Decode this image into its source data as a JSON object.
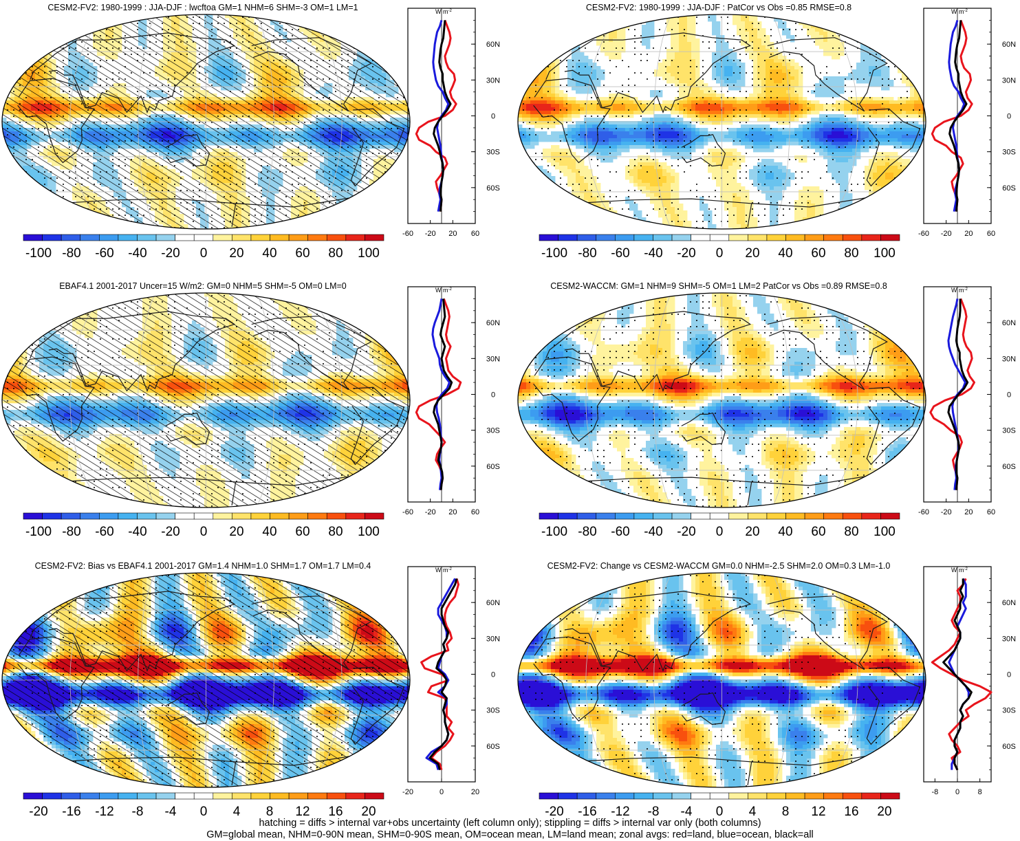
{
  "figure": {
    "footer": [
      "hatching = diffs > internal var+obs uncertainty (left column only); stippling = diffs > internal var only (both columns)",
      "GM=global mean, NHM=0-90N mean, SHM=0-90S mean, OM=ocean mean, LM=land mean; zonal avgs: red=land, blue=ocean, black=all"
    ],
    "zonal_unit": "W m",
    "zonal_unit_exp": "-2",
    "lat_labels": [
      "60N",
      "30N",
      "0",
      "30S",
      "60S"
    ]
  },
  "colors": {
    "red": "#e8141c",
    "blue": "#1a1adc",
    "black": "#000000",
    "palette": [
      "#2a0fd6",
      "#1f33e6",
      "#2f5ee8",
      "#3a80ec",
      "#3c9cf0",
      "#46b2f0",
      "#69c3ee",
      "#95d2ee",
      "#ffffff",
      "#ffffff",
      "#fff39e",
      "#ffe36a",
      "#ffd23a",
      "#ffbb22",
      "#ff9d17",
      "#ff7a10",
      "#f8500e",
      "#e8251a",
      "#cc0a17"
    ],
    "land": "#1c1c1c",
    "grid": "#bfbfbf"
  },
  "chart_data": [
    {
      "type": "heatmap",
      "title": "CESM2-FV2: 1980-1999 : JJA-DJF : lwcftoa GM=1 NHM=6 SHM=-3 OM=1 LM=1",
      "colorbar_labels": [
        "-100",
        "-80",
        "-60",
        "-40",
        "-20",
        "0",
        "20",
        "40",
        "60",
        "80",
        "100"
      ],
      "zonal": {
        "xticks": [
          "-60",
          "-20",
          "20",
          "60"
        ],
        "xlim": [
          -60,
          60
        ],
        "ylim": [
          -90,
          90
        ],
        "lat": [
          -80,
          -75,
          -70,
          -65,
          -60,
          -55,
          -50,
          -45,
          -40,
          -35,
          -30,
          -25,
          -20,
          -15,
          -10,
          -5,
          0,
          5,
          10,
          15,
          20,
          25,
          30,
          35,
          40,
          45,
          50,
          55,
          60,
          65,
          70,
          75,
          80
        ],
        "all": [
          -2,
          -1,
          0,
          -2,
          -1,
          0,
          2,
          3,
          2,
          -1,
          -3,
          -6,
          -10,
          -14,
          -12,
          -6,
          2,
          10,
          16,
          10,
          6,
          4,
          2,
          2,
          -2,
          -4,
          -3,
          -2,
          0,
          3,
          4,
          5,
          6
        ],
        "ocean": [
          -6,
          -4,
          -2,
          -4,
          -3,
          0,
          2,
          3,
          2,
          0,
          -1,
          -2,
          -4,
          -6,
          -8,
          -6,
          0,
          8,
          12,
          6,
          2,
          -6,
          -10,
          -12,
          -14,
          -15,
          -14,
          -13,
          -12,
          -10,
          -8,
          -3,
          0
        ],
        "land": [
          -2,
          -1,
          0,
          -4,
          -8,
          -10,
          -2,
          4,
          10,
          6,
          -10,
          -20,
          -40,
          -45,
          -40,
          -24,
          6,
          20,
          26,
          18,
          15,
          20,
          24,
          22,
          12,
          8,
          6,
          10,
          14,
          16,
          14,
          10,
          6
        ]
      },
      "map": {
        "hatch": true,
        "stipple_density": 0.5,
        "gain": 1.0,
        "seed": 1
      }
    },
    {
      "type": "heatmap",
      "title": "CESM2-FV2: 1980-1999 : JJA-DJF : PatCor vs Obs =0.85 RMSE=0.8",
      "colorbar_labels": [
        "-100",
        "-80",
        "-60",
        "-40",
        "-20",
        "0",
        "20",
        "40",
        "60",
        "80",
        "100"
      ],
      "zonal": {
        "xticks": [
          "-60",
          "-20",
          "20",
          "60"
        ],
        "xlim": [
          -60,
          60
        ],
        "ylim": [
          -90,
          90
        ],
        "lat": [
          -80,
          -75,
          -70,
          -65,
          -60,
          -55,
          -50,
          -45,
          -40,
          -35,
          -30,
          -25,
          -20,
          -15,
          -10,
          -5,
          0,
          5,
          10,
          15,
          20,
          25,
          30,
          35,
          40,
          45,
          50,
          55,
          60,
          65,
          70,
          75,
          80
        ],
        "all": [
          -2,
          -1,
          0,
          -2,
          -1,
          0,
          2,
          3,
          2,
          -1,
          -3,
          -6,
          -10,
          -14,
          -12,
          -6,
          2,
          10,
          16,
          10,
          6,
          4,
          2,
          2,
          -2,
          -4,
          -3,
          -2,
          0,
          3,
          4,
          5,
          6
        ],
        "ocean": [
          -6,
          -4,
          -2,
          -4,
          -3,
          0,
          2,
          3,
          2,
          0,
          -1,
          -2,
          -4,
          -6,
          -8,
          -6,
          0,
          8,
          12,
          6,
          2,
          -6,
          -10,
          -12,
          -14,
          -15,
          -14,
          -13,
          -12,
          -10,
          -8,
          -3,
          0
        ],
        "land": [
          -2,
          -1,
          0,
          -4,
          -8,
          -10,
          -2,
          4,
          10,
          6,
          -10,
          -20,
          -40,
          -45,
          -40,
          -24,
          6,
          20,
          26,
          18,
          15,
          20,
          24,
          22,
          12,
          8,
          6,
          10,
          14,
          16,
          14,
          10,
          6
        ]
      },
      "map": {
        "hatch": false,
        "stipple_density": 0.4,
        "gain": 1.0,
        "seed": 2
      }
    },
    {
      "type": "heatmap",
      "title": "EBAF4.1 2001-2017 Uncer=15 W/m2: GM=0 NHM=5 SHM=-5 OM=0 LM=0",
      "colorbar_labels": [
        "-100",
        "-80",
        "-60",
        "-40",
        "-20",
        "0",
        "20",
        "40",
        "60",
        "80",
        "100"
      ],
      "zonal": {
        "xticks": [
          "-60",
          "-20",
          "20",
          "60"
        ],
        "xlim": [
          -60,
          60
        ],
        "ylim": [
          -90,
          90
        ],
        "lat": [
          -80,
          -75,
          -70,
          -65,
          -60,
          -55,
          -50,
          -45,
          -40,
          -35,
          -30,
          -25,
          -20,
          -15,
          -10,
          -5,
          0,
          5,
          10,
          15,
          20,
          25,
          30,
          35,
          40,
          45,
          50,
          55,
          60,
          65,
          70,
          75,
          80
        ],
        "all": [
          -1,
          0,
          2,
          1,
          -2,
          -6,
          -4,
          -1,
          0,
          -2,
          -4,
          -6,
          -10,
          -14,
          -12,
          -6,
          4,
          14,
          18,
          10,
          4,
          2,
          0,
          3,
          6,
          2,
          -2,
          0,
          3,
          6,
          5,
          4,
          3
        ],
        "ocean": [
          -3,
          -2,
          0,
          -1,
          -2,
          -4,
          -3,
          -1,
          0,
          -1,
          -2,
          -3,
          -5,
          -8,
          -9,
          -7,
          0,
          10,
          14,
          6,
          0,
          -3,
          -4,
          -8,
          -12,
          -14,
          -16,
          -15,
          -12,
          -8,
          -4,
          -2,
          0
        ],
        "land": [
          -2,
          0,
          2,
          0,
          -4,
          -10,
          -8,
          -2,
          6,
          -2,
          -12,
          -22,
          -40,
          -45,
          -40,
          -20,
          10,
          30,
          34,
          20,
          12,
          10,
          8,
          12,
          16,
          10,
          8,
          10,
          12,
          14,
          12,
          8,
          4
        ]
      },
      "map": {
        "hatch": true,
        "stipple_density": 0.35,
        "gain": 0.9,
        "seed": 3
      }
    },
    {
      "type": "heatmap",
      "title": "CESM2-WACCM: GM=1 NHM=9 SHM=-5 OM=1 LM=2 PatCor vs Obs =0.89 RMSE=0.8",
      "colorbar_labels": [
        "-100",
        "-80",
        "-60",
        "-40",
        "-20",
        "0",
        "20",
        "40",
        "60",
        "80",
        "100"
      ],
      "zonal": {
        "xticks": [
          "-60",
          "-20",
          "20",
          "60"
        ],
        "xlim": [
          -60,
          60
        ],
        "ylim": [
          -90,
          90
        ],
        "lat": [
          -80,
          -75,
          -70,
          -65,
          -60,
          -55,
          -50,
          -45,
          -40,
          -35,
          -30,
          -25,
          -20,
          -15,
          -10,
          -5,
          0,
          5,
          10,
          15,
          20,
          25,
          30,
          35,
          40,
          45,
          50,
          55,
          60,
          65,
          70,
          75,
          80
        ],
        "all": [
          -2,
          -1,
          0,
          -2,
          -2,
          -1,
          1,
          3,
          2,
          -1,
          -4,
          -8,
          -12,
          -16,
          -14,
          -6,
          2,
          12,
          18,
          12,
          8,
          6,
          4,
          4,
          0,
          -2,
          -1,
          0,
          2,
          4,
          5,
          5,
          5
        ],
        "ocean": [
          -5,
          -4,
          -2,
          -3,
          -3,
          -1,
          1,
          2,
          2,
          0,
          -2,
          -4,
          -6,
          -8,
          -9,
          -7,
          0,
          10,
          14,
          8,
          2,
          -4,
          -8,
          -12,
          -15,
          -16,
          -14,
          -12,
          -10,
          -8,
          -5,
          -2,
          0
        ],
        "land": [
          -2,
          -1,
          0,
          -3,
          -6,
          -8,
          -2,
          4,
          8,
          4,
          -12,
          -24,
          -42,
          -48,
          -42,
          -22,
          8,
          24,
          30,
          22,
          18,
          22,
          26,
          24,
          16,
          12,
          10,
          12,
          14,
          16,
          14,
          10,
          6
        ]
      },
      "map": {
        "hatch": false,
        "stipple_density": 0.45,
        "gain": 1.1,
        "seed": 4
      }
    },
    {
      "type": "heatmap",
      "title": "CESM2-FV2: Bias vs EBAF4.1 2001-2017 GM=1.4 NHM=1.0 SHM=1.7 OM=1.7 LM=0.4",
      "colorbar_labels": [
        "-20",
        "-16",
        "-12",
        "-8",
        "-4",
        "0",
        "4",
        "8",
        "12",
        "16",
        "20"
      ],
      "zonal": {
        "xticks": [
          "-20",
          "0",
          "20"
        ],
        "xlim": [
          -20,
          20
        ],
        "ylim": [
          -90,
          90
        ],
        "lat": [
          -80,
          -75,
          -70,
          -65,
          -60,
          -55,
          -50,
          -45,
          -40,
          -35,
          -30,
          -25,
          -20,
          -15,
          -10,
          -5,
          0,
          5,
          10,
          15,
          20,
          25,
          30,
          35,
          40,
          45,
          50,
          55,
          60,
          65,
          70,
          75,
          80
        ],
        "all": [
          -1,
          -2,
          -7,
          -4,
          0,
          3,
          4,
          3,
          2,
          2,
          1,
          2,
          3,
          0,
          2,
          3,
          1,
          -3,
          -2,
          0,
          2,
          1,
          3,
          4,
          2,
          1,
          0,
          0,
          2,
          4,
          6,
          8,
          9
        ],
        "ocean": [
          -2,
          -3,
          -9,
          -6,
          0,
          3,
          4,
          3,
          2,
          2,
          1,
          3,
          3,
          -2,
          2,
          4,
          2,
          -2,
          -1,
          0,
          2,
          1,
          3,
          3,
          2,
          0,
          -2,
          -2,
          0,
          2,
          4,
          6,
          8
        ],
        "land": [
          0,
          -1,
          -6,
          -3,
          2,
          5,
          7,
          4,
          6,
          3,
          3,
          3,
          2,
          -8,
          -6,
          4,
          0,
          -10,
          -12,
          -6,
          4,
          3,
          6,
          5,
          3,
          2,
          2,
          3,
          5,
          8,
          9,
          10,
          9
        ]
      },
      "map": {
        "hatch": true,
        "stipple_density": 0.45,
        "gain": 2.2,
        "seed": 5
      }
    },
    {
      "type": "heatmap",
      "title": "CESM2-FV2: Change vs CESM2-WACCM GM=0.0 NHM=-2.5 SHM=2.0 OM=0.3 LM=-1.0",
      "colorbar_labels": [
        "-20",
        "-16",
        "-12",
        "-8",
        "-4",
        "0",
        "4",
        "8",
        "12",
        "16",
        "20"
      ],
      "zonal": {
        "xticks": [
          "-8",
          "0",
          "8"
        ],
        "xlim": [
          -12,
          12
        ],
        "ylim": [
          -90,
          90
        ],
        "lat": [
          -80,
          -75,
          -70,
          -65,
          -60,
          -55,
          -50,
          -45,
          -40,
          -35,
          -30,
          -25,
          -20,
          -15,
          -10,
          -5,
          0,
          5,
          10,
          15,
          20,
          25,
          30,
          35,
          40,
          45,
          50,
          55,
          60,
          65,
          70,
          75,
          80
        ],
        "all": [
          0,
          -1,
          -1,
          0,
          -1,
          -1,
          0,
          1,
          1,
          2,
          1,
          2,
          4,
          5,
          3,
          1,
          -1,
          -3,
          -5,
          -3,
          -1,
          0,
          1,
          1,
          0,
          -1,
          0,
          1,
          1,
          2,
          1,
          2,
          2
        ],
        "ocean": [
          -2,
          -2,
          -1,
          0,
          -1,
          -1,
          0,
          1,
          1,
          2,
          1,
          2,
          4,
          4,
          3,
          1,
          -1,
          -2,
          -3,
          -2,
          -1,
          0,
          1,
          1,
          0,
          1,
          2,
          3,
          2,
          3,
          3,
          3,
          2
        ],
        "land": [
          0,
          -1,
          -2,
          1,
          0,
          -2,
          -3,
          -1,
          1,
          4,
          3,
          6,
          10,
          12,
          8,
          2,
          -2,
          -6,
          -9,
          -6,
          -3,
          -1,
          0,
          1,
          -1,
          -2,
          -1,
          0,
          1,
          1,
          0,
          2,
          3
        ]
      },
      "map": {
        "hatch": false,
        "stipple_density": 0.4,
        "gain": 2.0,
        "seed": 6
      }
    }
  ]
}
